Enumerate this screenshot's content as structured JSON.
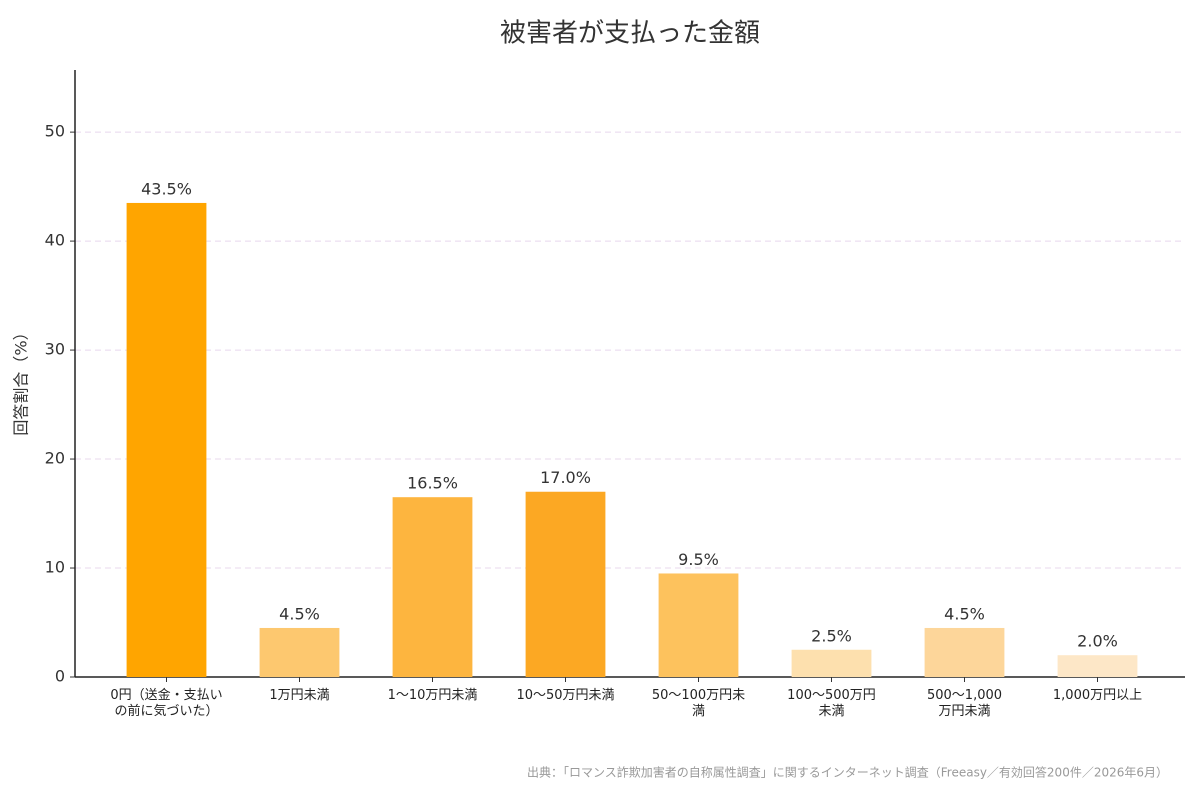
{
  "chart_data": {
    "type": "bar",
    "title": "被害者が支払った金額",
    "y_label": "回答割合（%）",
    "categories": [
      "0円（送金・支払い\nの前に気づいた）",
      "1万円未満",
      "1〜10万円未満",
      "10〜50万円未満",
      "50〜100万円未\n満",
      "100〜500万円\n未満",
      "500〜1,000\n万円未満",
      "1,000万円以上"
    ],
    "values": [
      43.5,
      4.5,
      16.5,
      17.0,
      9.5,
      2.5,
      4.5,
      2.0
    ],
    "value_labels": [
      "43.5%",
      "4.5%",
      "16.5%",
      "17.0%",
      "9.5%",
      "2.5%",
      "4.5%",
      "2.0%"
    ],
    "colors": [
      "#FFA500",
      "#FDC86F",
      "#FDB53F",
      "#FCA823",
      "#FDC25D",
      "#FDE0AE",
      "#FDD69A",
      "#FDE7C7"
    ],
    "ylim": [
      0,
      55.7
    ],
    "yticks": [
      0,
      10,
      20,
      30,
      40,
      50
    ],
    "grid": true,
    "source": "出典：「ロマンス詐欺加害者の自称属性調査」に関するインターネット調査（Freeasy／有効回答200件／2026年6月）"
  }
}
